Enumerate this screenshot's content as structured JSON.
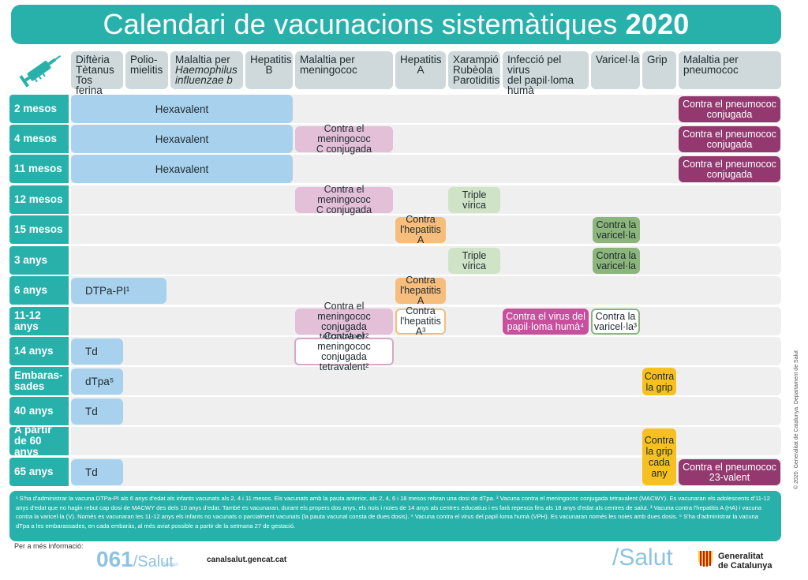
{
  "title": {
    "main": "Calendari de vacunacions sistemàtiques",
    "year": "2020"
  },
  "columns": [
    {
      "line1": "Diftèria",
      "line2": "Tètanus",
      "line3": "Tos ferina"
    },
    {
      "line1": "Polio-",
      "line2": "mielitis"
    },
    {
      "line1": "Malaltia per",
      "line2": "Haemophilus",
      "line3": "influenzae b"
    },
    {
      "line1": "Hepatitis",
      "line2": "B"
    },
    {
      "line1": "Malaltia per",
      "line2": "meningococ"
    },
    {
      "line1": "Hepatitis",
      "line2": "A"
    },
    {
      "line1": "Xarampió",
      "line2": "Rubèola",
      "line3": "Parotiditis"
    },
    {
      "line1": "Infecció pel virus",
      "line2": "del papil·loma",
      "line3": "humà"
    },
    {
      "line1": "Varicel·la"
    },
    {
      "line1": "Grip"
    },
    {
      "line1": "Malaltia per",
      "line2": "pneumococ"
    }
  ],
  "rows": [
    {
      "label": "2 mesos"
    },
    {
      "label": "4 mesos"
    },
    {
      "label": "11 mesos"
    },
    {
      "label": "12 mesos"
    },
    {
      "label": "15 mesos"
    },
    {
      "label": "3 anys"
    },
    {
      "label": "6 anys"
    },
    {
      "label": "11-12 anys"
    },
    {
      "label": "14 anys"
    },
    {
      "label": "Embaras-sades"
    },
    {
      "label": "40 anys"
    },
    {
      "label": "A partir de 60 anys"
    },
    {
      "label": "65 anys"
    }
  ],
  "cells": {
    "hexavalent": "Hexavalent",
    "pneumo_conj_1": "Contra el pneumococ",
    "pneumo_conj_2": "conjugada",
    "mening_c_1": "Contra el meningococ",
    "mening_c_2": "C conjugada",
    "triple": "Triple vírica",
    "hepA_1": "Contra",
    "hepA_2": "l'hepatitis A",
    "hepA3_2": "l'hepatitis A³",
    "varic_1": "Contra la",
    "varic_2": "varicel·la",
    "varic3_2": "varicel·la³",
    "dtpa_pi": "DTPa-PI¹",
    "mening_tetra_1": "Contra el meningococ",
    "mening_tetra_2": "conjugada tetravalent²",
    "vph_1": "Contra el virus del",
    "vph_2": "papil·loma humà⁴",
    "td": "Td",
    "dtpa5": "dTpa⁵",
    "grip_1": "Contra",
    "grip_2": "la grip",
    "grip60_1": "Contra",
    "grip60_2": "la grip",
    "grip60_3": "cada",
    "grip60_4": "any",
    "pneumo23_1": "Contra el pneumococ",
    "pneumo23_2": "23-valent"
  },
  "notes": {
    "line1": "¹ S'ha d'administrar la vacuna DTPa-PI als 6 anys d'edat als infants vacunats als 2, 4 i 11 mesos. Els vacunats amb la pauta anterior, als 2, 4, 6 i 18 mesos rebran una dosi de dTpa.   ² Vacuna contra el meningococ conjugada tetravalent (MACWY). Es vacunaran els adolescents d'11-12",
    "line2": "anys d'edat que no hagin rebut cap dosi de MACWY des dels 10 anys d'edat. També es vacunaran, durant els propers dos anys, els nois i noies de 14 anys als centres educatius i es farà repesca fins als 18 anys d'edat als centres de salut.   ³ Vacuna contra l'hepatitis A (HA) i vacuna",
    "line3": "contra la varicel·la (V). Només es vacunaran les 11-12 anys els infants no vacunats o parcialment vacunats (la pauta vacunal consta de dues dosis).   ⁴ Vacuna contra el virus del papil·loma humà (VPH). Es vacunaran només les noies amb dues dosis.   ⁵ S'ha d'administrar la vacuna",
    "line4": "dTpa a les embarassades, en cada embaràs, al més aviat possible a partir de la setmana 27 de gestació."
  },
  "footer": {
    "more_info": "Per a més informació:",
    "num": "061",
    "salut": "/Salut",
    "respon": "Respon",
    "site": "canalsalut.gencat.cat",
    "salut_logo": "/Salut",
    "gen1": "Generalitat",
    "gen2": "de Catalunya",
    "copyright": "© 2020. Generalitat de Catalunya. Departament de Salut"
  },
  "colors": {
    "teal": "#28b1ab",
    "hex_blue": "#a8d1ee",
    "purple": "#93396f",
    "pink": "#e3bfd8",
    "green": "#cfe3c6",
    "orange": "#f6bd7c",
    "yellow": "#f6c020"
  }
}
